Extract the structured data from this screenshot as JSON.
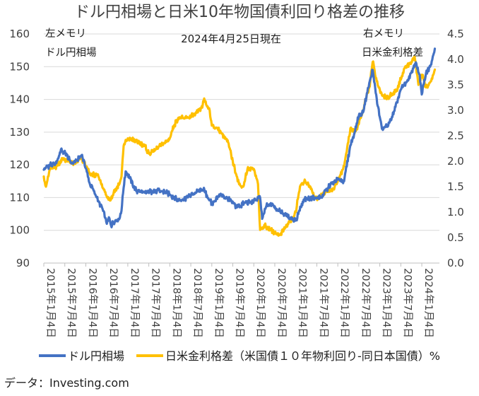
{
  "chart_data": {
    "type": "line",
    "title": "ドル円相場と日米10年物国債利回り格差の推移",
    "subtitle": "2024年4月25日現在",
    "left_axis_label": [
      "左メモリ",
      "ドル円相場"
    ],
    "right_axis_label": [
      "右メモリ",
      "日米金利格差"
    ],
    "left_ylim": [
      90,
      160
    ],
    "left_ticks": [
      "90",
      "100",
      "110",
      "120",
      "130",
      "140",
      "150",
      "160"
    ],
    "right_ylim": [
      0.0,
      4.5
    ],
    "right_ticks": [
      "0.0",
      "0.5",
      "1.0",
      "1.5",
      "2.0",
      "2.5",
      "3.0",
      "3.5",
      "4.0",
      "4.5"
    ],
    "x_tick_labels": [
      "2015年1月4日",
      "2015年7月4日",
      "2016年1月4日",
      "2016年7月4日",
      "2017年1月4日",
      "2017年7月4日",
      "2018年1月4日",
      "2018年7月4日",
      "2019年1月4日",
      "2019年7月4日",
      "2020年1月4日",
      "2020年7月4日",
      "2021年1月4日",
      "2021年7月4日",
      "2022年1月4日",
      "2022年7月4日",
      "2023年1月4日",
      "2023年7月4日",
      "2024年1月4日"
    ],
    "series": [
      {
        "name": "ドル円相場",
        "axis": "left",
        "color": "#4472C4",
        "x": [
          2015.0,
          2015.15,
          2015.3,
          2015.42,
          2015.45,
          2015.55,
          2015.65,
          2015.8,
          2015.9,
          2016.0,
          2016.1,
          2016.2,
          2016.3,
          2016.4,
          2016.5,
          2016.55,
          2016.6,
          2016.7,
          2016.8,
          2016.85,
          2016.9,
          2016.95,
          2017.0,
          2017.2,
          2017.4,
          2017.6,
          2017.8,
          2018.0,
          2018.2,
          2018.4,
          2018.6,
          2018.8,
          2019.0,
          2019.2,
          2019.4,
          2019.6,
          2019.8,
          2020.0,
          2020.15,
          2020.2,
          2020.3,
          2020.45,
          2020.6,
          2020.8,
          2021.0,
          2021.2,
          2021.4,
          2021.6,
          2021.8,
          2022.0,
          2022.15,
          2022.3,
          2022.4,
          2022.5,
          2022.6,
          2022.75,
          2022.83,
          2022.95,
          2023.05,
          2023.2,
          2023.35,
          2023.5,
          2023.65,
          2023.8,
          2023.87,
          2023.95,
          2024.0,
          2024.1,
          2024.2,
          2024.31
        ],
        "y": [
          118.5,
          120.0,
          120.5,
          125.0,
          124.0,
          123.0,
          120.5,
          121.5,
          123.0,
          119.0,
          114.0,
          112.0,
          109.0,
          106.5,
          102.0,
          104.0,
          101.5,
          103.0,
          103.5,
          106.0,
          113.0,
          118.0,
          117.0,
          112.0,
          111.5,
          112.0,
          112.0,
          111.0,
          109.0,
          110.0,
          111.5,
          112.5,
          108.0,
          111.0,
          109.5,
          107.0,
          108.5,
          109.0,
          110.0,
          103.5,
          107.5,
          108.0,
          106.0,
          104.5,
          103.0,
          109.5,
          110.0,
          110.0,
          113.5,
          115.5,
          115.0,
          126.0,
          130.0,
          135.0,
          136.0,
          145.0,
          149.0,
          138.0,
          131.0,
          132.0,
          136.5,
          143.0,
          145.5,
          149.5,
          151.0,
          147.5,
          141.5,
          148.0,
          150.0,
          155.5
        ]
      },
      {
        "name": "日米金利格差（米国債１０年物利回り-同日本国債）%",
        "axis": "right",
        "color": "#FFC000",
        "x": [
          2015.0,
          2015.05,
          2015.15,
          2015.3,
          2015.45,
          2015.6,
          2015.75,
          2015.9,
          2016.0,
          2016.1,
          2016.3,
          2016.5,
          2016.6,
          2016.7,
          2016.8,
          2016.85,
          2016.9,
          2017.0,
          2017.2,
          2017.4,
          2017.5,
          2017.7,
          2017.85,
          2017.95,
          2018.0,
          2018.1,
          2018.2,
          2018.4,
          2018.6,
          2018.75,
          2018.83,
          2018.95,
          2019.0,
          2019.2,
          2019.4,
          2019.5,
          2019.65,
          2019.75,
          2019.85,
          2020.0,
          2020.1,
          2020.15,
          2020.25,
          2020.4,
          2020.5,
          2020.6,
          2020.75,
          2020.9,
          2021.0,
          2021.1,
          2021.2,
          2021.3,
          2021.5,
          2021.7,
          2021.9,
          2022.0,
          2022.15,
          2022.3,
          2022.4,
          2022.55,
          2022.75,
          2022.83,
          2022.95,
          2023.05,
          2023.2,
          2023.4,
          2023.5,
          2023.6,
          2023.75,
          2023.83,
          2023.92,
          2024.0,
          2024.1,
          2024.2,
          2024.31
        ],
        "y": [
          1.7,
          1.5,
          1.85,
          1.9,
          2.05,
          2.0,
          1.95,
          2.05,
          1.9,
          1.75,
          1.7,
          1.3,
          1.25,
          1.45,
          1.55,
          1.7,
          2.3,
          2.45,
          2.4,
          2.3,
          2.15,
          2.25,
          2.35,
          2.4,
          2.45,
          2.7,
          2.85,
          2.85,
          2.9,
          3.05,
          3.2,
          3.0,
          2.7,
          2.6,
          2.35,
          2.0,
          1.55,
          1.5,
          1.85,
          1.85,
          1.55,
          0.65,
          0.75,
          0.65,
          0.6,
          0.55,
          0.7,
          0.85,
          1.0,
          1.5,
          1.6,
          1.55,
          1.25,
          1.4,
          1.45,
          1.6,
          1.9,
          2.65,
          2.55,
          2.85,
          3.45,
          3.95,
          3.5,
          3.3,
          3.25,
          3.4,
          3.6,
          3.85,
          3.95,
          4.05,
          3.5,
          3.7,
          3.45,
          3.55,
          3.8
        ]
      }
    ],
    "legend": [
      "ドル円相場",
      "日米金利格差（米国債１０年物利回り-同日本国債）%"
    ],
    "legend_position": "bottom",
    "source": "データ：Investing.com"
  }
}
